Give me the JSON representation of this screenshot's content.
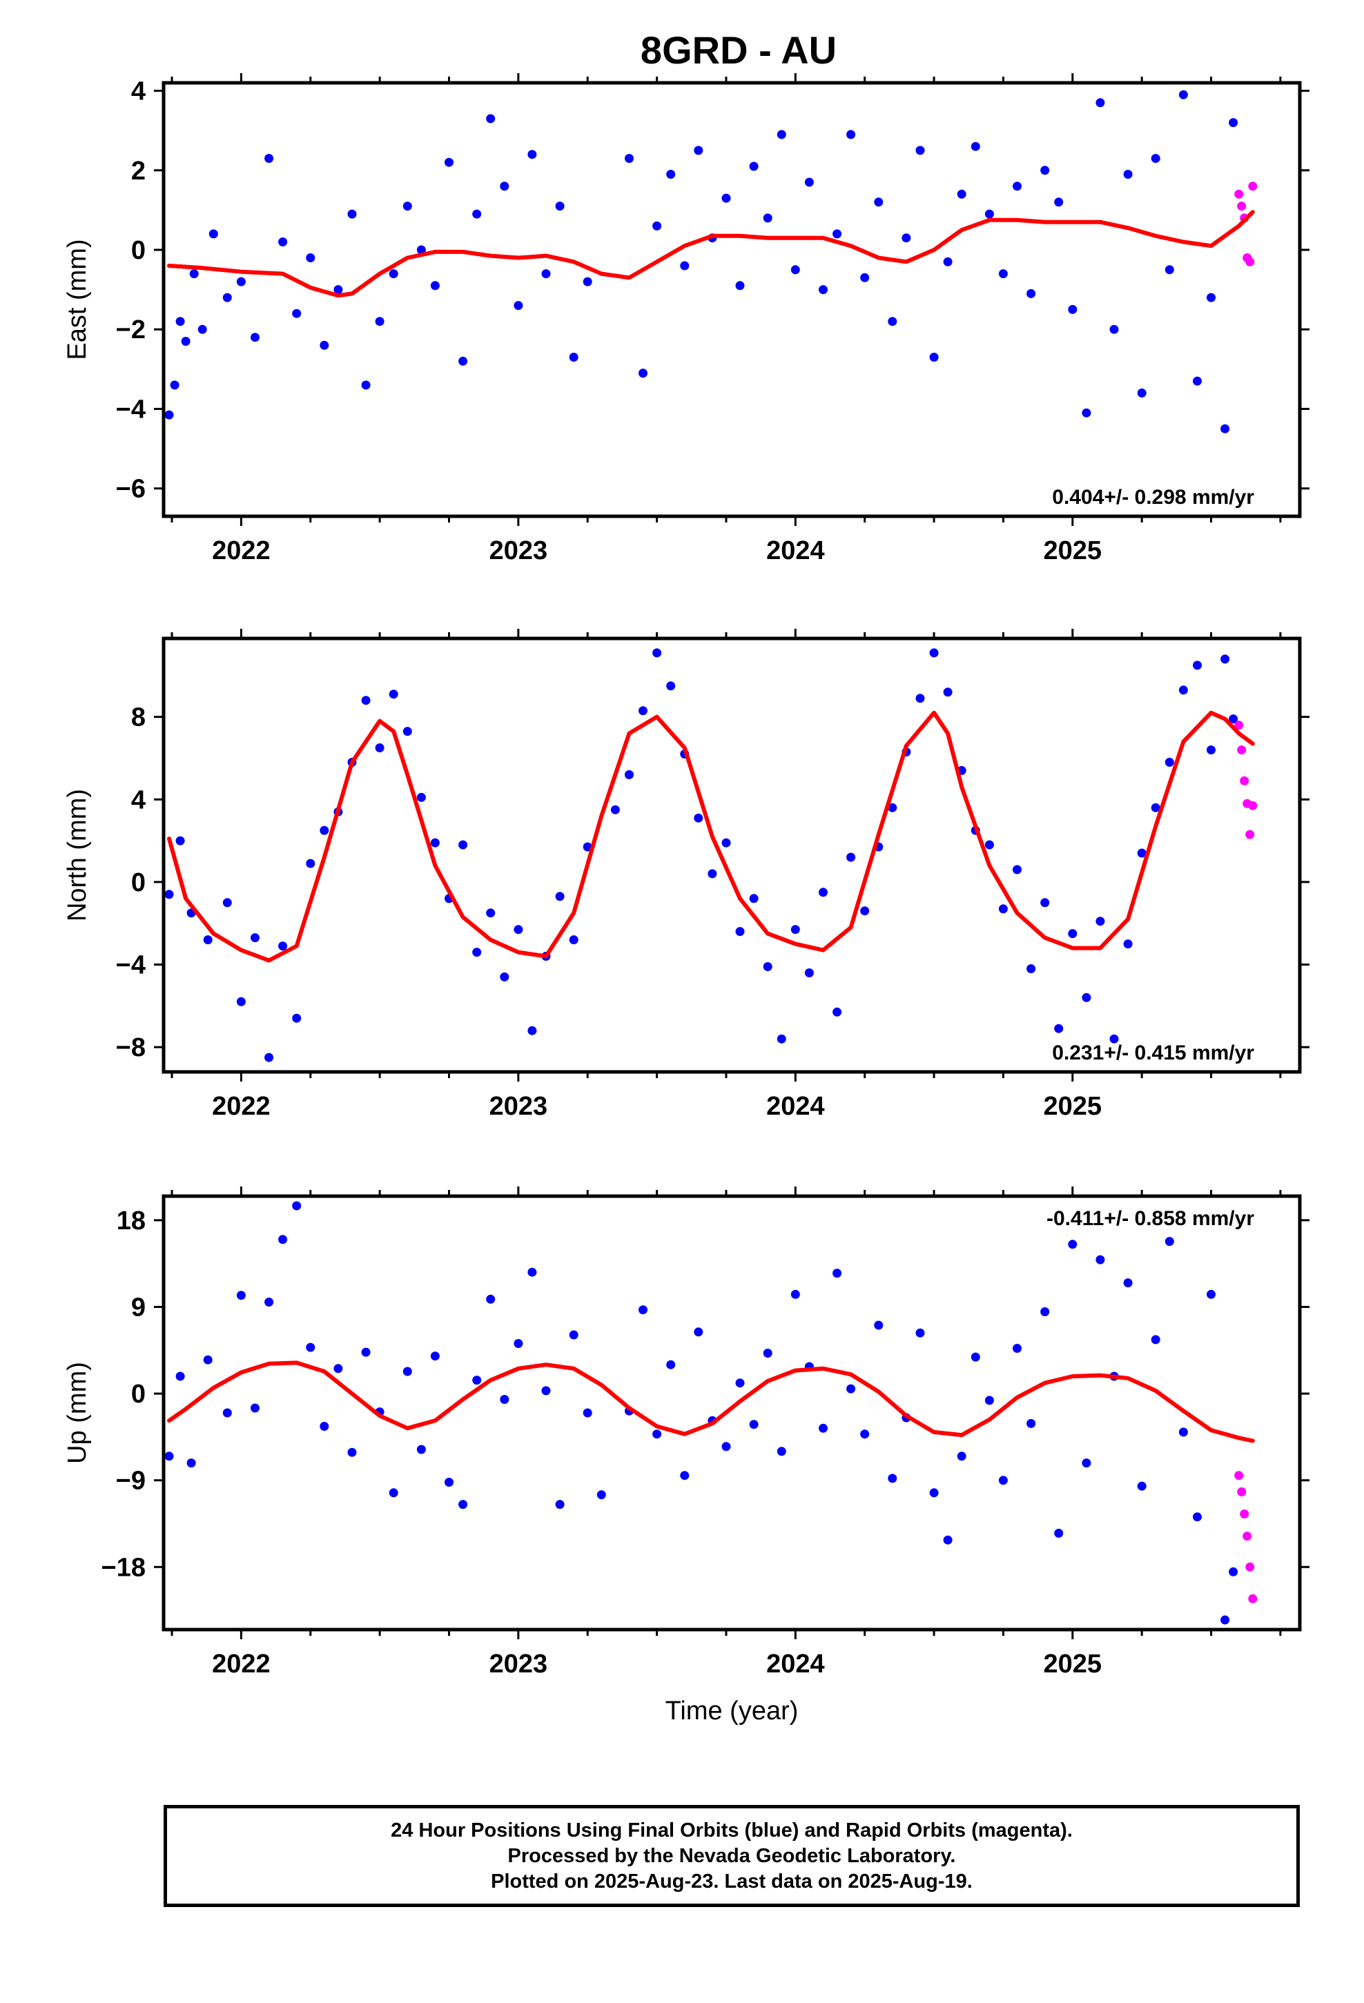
{
  "title": "8GRD - AU",
  "footer": {
    "line1": "24 Hour Positions Using Final Orbits (blue) and Rapid Orbits (magenta).",
    "line2": "Processed by the Nevada Geodetic Laboratory.",
    "line3": "Plotted on 2025-Aug-23. Last data on 2025-Aug-19."
  },
  "colors": {
    "final": "#0000ff",
    "rapid": "#ff00ff",
    "model": "#ff0000",
    "frame": "#000000"
  },
  "chart_data": [
    {
      "type": "scatter",
      "title": "",
      "xlabel": "",
      "ylabel": "East (mm)",
      "rate_label": "0.404+/- 0.298 mm/yr",
      "xlim": [
        2021.72,
        2025.82
      ],
      "ylim": [
        -6.7,
        4.2
      ],
      "xticks": [
        2022,
        2023,
        2024,
        2025
      ],
      "yticks": [
        -6,
        -4,
        -2,
        0,
        2,
        4
      ],
      "ytick_labels": [
        "−6",
        "−4",
        "−2",
        "0",
        "2",
        "4"
      ],
      "series": [
        {
          "color": "final",
          "x": [
            2021.74,
            2021.76,
            2021.78,
            2021.8,
            2021.83,
            2021.86,
            2021.9,
            2021.95,
            2022.0,
            2022.05,
            2022.1,
            2022.15,
            2022.2,
            2022.25,
            2022.3,
            2022.35,
            2022.4,
            2022.45,
            2022.5,
            2022.55,
            2022.6,
            2022.65,
            2022.7,
            2022.75,
            2022.8,
            2022.85,
            2022.9,
            2022.95,
            2023.0,
            2023.05,
            2023.1,
            2023.15,
            2023.2,
            2023.25,
            2023.4,
            2023.45,
            2023.5,
            2023.55,
            2023.6,
            2023.65,
            2023.7,
            2023.75,
            2023.8,
            2023.85,
            2023.9,
            2023.95,
            2024.0,
            2024.05,
            2024.1,
            2024.15,
            2024.2,
            2024.25,
            2024.3,
            2024.35,
            2024.4,
            2024.45,
            2024.5,
            2024.55,
            2024.6,
            2024.65,
            2024.7,
            2024.75,
            2024.8,
            2024.85,
            2024.9,
            2024.95,
            2025.0,
            2025.05,
            2025.1,
            2025.15,
            2025.2,
            2025.25,
            2025.3,
            2025.35,
            2025.4,
            2025.45,
            2025.5,
            2025.55,
            2025.58
          ],
          "y": [
            -4.15,
            -3.4,
            -1.8,
            -2.3,
            -0.6,
            -2.0,
            0.4,
            -1.2,
            -0.8,
            -2.2,
            2.3,
            0.2,
            -1.6,
            -0.2,
            -2.4,
            -1.0,
            0.9,
            -3.4,
            -1.8,
            -0.6,
            1.1,
            0.0,
            -0.9,
            2.2,
            -2.8,
            0.9,
            3.3,
            1.6,
            -1.4,
            2.4,
            -0.6,
            1.1,
            -2.7,
            -0.8,
            2.3,
            -3.1,
            0.6,
            1.9,
            -0.4,
            2.5,
            0.3,
            1.3,
            -0.9,
            2.1,
            0.8,
            2.9,
            -0.5,
            1.7,
            -1.0,
            0.4,
            2.9,
            -0.7,
            1.2,
            -1.8,
            0.3,
            2.5,
            -2.7,
            -0.3,
            1.4,
            2.6,
            0.9,
            -0.6,
            1.6,
            -1.1,
            2.0,
            1.2,
            -1.5,
            -4.1,
            3.7,
            -2.0,
            1.9,
            -3.6,
            2.3,
            -0.5,
            3.9,
            -3.3,
            -1.2,
            -4.5,
            3.2
          ]
        },
        {
          "color": "rapid",
          "x": [
            2025.6,
            2025.61,
            2025.62,
            2025.63,
            2025.64,
            2025.65
          ],
          "y": [
            1.4,
            1.1,
            0.8,
            -0.2,
            -0.3,
            1.6
          ]
        },
        {
          "color": "model",
          "x": [
            2021.74,
            2021.85,
            2022.0,
            2022.15,
            2022.25,
            2022.35,
            2022.4,
            2022.5,
            2022.6,
            2022.7,
            2022.8,
            2022.9,
            2023.0,
            2023.1,
            2023.2,
            2023.3,
            2023.4,
            2023.5,
            2023.6,
            2023.7,
            2023.8,
            2023.9,
            2024.0,
            2024.1,
            2024.2,
            2024.3,
            2024.4,
            2024.5,
            2024.6,
            2024.7,
            2024.8,
            2024.9,
            2025.0,
            2025.1,
            2025.2,
            2025.3,
            2025.4,
            2025.5,
            2025.6,
            2025.65
          ],
          "y": [
            -0.4,
            -0.45,
            -0.55,
            -0.6,
            -0.95,
            -1.15,
            -1.1,
            -0.6,
            -0.2,
            -0.05,
            -0.05,
            -0.15,
            -0.2,
            -0.15,
            -0.3,
            -0.6,
            -0.7,
            -0.3,
            0.1,
            0.35,
            0.35,
            0.3,
            0.3,
            0.3,
            0.1,
            -0.2,
            -0.3,
            0.0,
            0.5,
            0.75,
            0.75,
            0.7,
            0.7,
            0.7,
            0.55,
            0.35,
            0.2,
            0.1,
            0.6,
            0.95
          ]
        }
      ]
    },
    {
      "type": "scatter",
      "title": "",
      "xlabel": "",
      "ylabel": "North (mm)",
      "rate_label": "0.231+/- 0.415 mm/yr",
      "xlim": [
        2021.72,
        2025.82
      ],
      "ylim": [
        -9.2,
        11.8
      ],
      "xticks": [
        2022,
        2023,
        2024,
        2025
      ],
      "yticks": [
        -8,
        -4,
        0,
        4,
        8
      ],
      "ytick_labels": [
        "−8",
        "−4",
        "0",
        "4",
        "8"
      ],
      "series": [
        {
          "color": "final",
          "x": [
            2021.74,
            2021.78,
            2021.82,
            2021.88,
            2021.95,
            2022.0,
            2022.05,
            2022.1,
            2022.15,
            2022.2,
            2022.25,
            2022.3,
            2022.35,
            2022.4,
            2022.45,
            2022.5,
            2022.55,
            2022.6,
            2022.65,
            2022.7,
            2022.75,
            2022.8,
            2022.85,
            2022.9,
            2022.95,
            2023.0,
            2023.05,
            2023.1,
            2023.15,
            2023.2,
            2023.25,
            2023.35,
            2023.4,
            2023.45,
            2023.5,
            2023.55,
            2023.6,
            2023.65,
            2023.7,
            2023.75,
            2023.8,
            2023.85,
            2023.9,
            2023.95,
            2024.0,
            2024.05,
            2024.1,
            2024.15,
            2024.2,
            2024.25,
            2024.3,
            2024.35,
            2024.4,
            2024.45,
            2024.5,
            2024.55,
            2024.6,
            2024.65,
            2024.7,
            2024.75,
            2024.8,
            2024.85,
            2024.9,
            2024.95,
            2025.0,
            2025.05,
            2025.1,
            2025.15,
            2025.2,
            2025.25,
            2025.3,
            2025.35,
            2025.4,
            2025.45,
            2025.5,
            2025.55,
            2025.58
          ],
          "y": [
            -0.6,
            2.0,
            -1.5,
            -2.8,
            -1.0,
            -5.8,
            -2.7,
            -8.5,
            -3.1,
            -6.6,
            0.9,
            2.5,
            3.4,
            5.8,
            8.8,
            6.5,
            9.1,
            7.3,
            4.1,
            1.9,
            -0.8,
            1.8,
            -3.4,
            -1.5,
            -4.6,
            -2.3,
            -7.2,
            -3.6,
            -0.7,
            -2.8,
            1.7,
            3.5,
            5.2,
            8.3,
            11.1,
            9.5,
            6.2,
            3.1,
            0.4,
            1.9,
            -2.4,
            -0.8,
            -4.1,
            -7.6,
            -2.3,
            -4.4,
            -0.5,
            -6.3,
            1.2,
            -1.4,
            1.7,
            3.6,
            6.3,
            8.9,
            11.1,
            9.2,
            5.4,
            2.5,
            1.8,
            -1.3,
            0.6,
            -4.2,
            -1.0,
            -7.1,
            -2.5,
            -5.6,
            -1.9,
            -7.6,
            -3.0,
            1.4,
            3.6,
            5.8,
            9.3,
            10.5,
            6.4,
            10.8,
            7.9
          ]
        },
        {
          "color": "rapid",
          "x": [
            2025.6,
            2025.61,
            2025.62,
            2025.63,
            2025.64,
            2025.65
          ],
          "y": [
            7.6,
            6.4,
            4.9,
            3.8,
            2.3,
            3.7
          ]
        },
        {
          "color": "model",
          "x": [
            2021.74,
            2021.8,
            2021.9,
            2022.0,
            2022.1,
            2022.2,
            2022.3,
            2022.4,
            2022.5,
            2022.55,
            2022.6,
            2022.7,
            2022.8,
            2022.9,
            2023.0,
            2023.1,
            2023.2,
            2023.3,
            2023.4,
            2023.5,
            2023.6,
            2023.7,
            2023.8,
            2023.9,
            2024.0,
            2024.1,
            2024.2,
            2024.3,
            2024.4,
            2024.5,
            2024.55,
            2024.6,
            2024.7,
            2024.8,
            2024.9,
            2025.0,
            2025.1,
            2025.2,
            2025.3,
            2025.4,
            2025.5,
            2025.55,
            2025.6,
            2025.65
          ],
          "y": [
            2.1,
            -0.8,
            -2.5,
            -3.3,
            -3.8,
            -3.1,
            1.2,
            5.8,
            7.8,
            7.3,
            5.2,
            0.8,
            -1.7,
            -2.8,
            -3.4,
            -3.6,
            -1.5,
            3.2,
            7.2,
            8.0,
            6.5,
            2.2,
            -0.8,
            -2.5,
            -3.0,
            -3.3,
            -2.2,
            2.3,
            6.6,
            8.2,
            7.2,
            4.6,
            0.8,
            -1.5,
            -2.7,
            -3.2,
            -3.2,
            -1.8,
            2.7,
            6.8,
            8.2,
            7.9,
            7.2,
            6.7
          ]
        }
      ]
    },
    {
      "type": "scatter",
      "title": "",
      "xlabel": "Time (year)",
      "ylabel": "Up (mm)",
      "rate_label": "-0.411+/- 0.858 mm/yr",
      "xlim": [
        2021.72,
        2025.82
      ],
      "ylim": [
        -24.5,
        20.5
      ],
      "xticks": [
        2022,
        2023,
        2024,
        2025
      ],
      "yticks": [
        -18,
        -9,
        0,
        9,
        18
      ],
      "ytick_labels": [
        "−18",
        "−9",
        "0",
        "9",
        "18"
      ],
      "series": [
        {
          "color": "final",
          "x": [
            2021.74,
            2021.78,
            2021.82,
            2021.88,
            2021.95,
            2022.0,
            2022.05,
            2022.1,
            2022.15,
            2022.2,
            2022.25,
            2022.3,
            2022.35,
            2022.4,
            2022.45,
            2022.5,
            2022.55,
            2022.6,
            2022.65,
            2022.7,
            2022.75,
            2022.8,
            2022.85,
            2022.9,
            2022.95,
            2023.0,
            2023.05,
            2023.1,
            2023.15,
            2023.2,
            2023.25,
            2023.3,
            2023.4,
            2023.45,
            2023.5,
            2023.55,
            2023.6,
            2023.65,
            2023.7,
            2023.75,
            2023.8,
            2023.85,
            2023.9,
            2023.95,
            2024.0,
            2024.05,
            2024.1,
            2024.15,
            2024.2,
            2024.25,
            2024.3,
            2024.35,
            2024.4,
            2024.45,
            2024.5,
            2024.55,
            2024.6,
            2024.65,
            2024.7,
            2024.75,
            2024.8,
            2024.85,
            2024.9,
            2024.95,
            2025.0,
            2025.05,
            2025.1,
            2025.15,
            2025.2,
            2025.25,
            2025.3,
            2025.35,
            2025.4,
            2025.45,
            2025.5,
            2025.55,
            2025.58
          ],
          "y": [
            -6.5,
            1.8,
            -7.2,
            3.5,
            -2.0,
            10.2,
            -1.5,
            9.5,
            16.0,
            19.5,
            4.8,
            -3.4,
            2.6,
            -6.1,
            4.3,
            -1.9,
            -10.3,
            2.3,
            -5.8,
            3.9,
            -9.2,
            -11.5,
            1.4,
            9.8,
            -0.6,
            5.2,
            12.6,
            0.3,
            -11.5,
            6.1,
            -2.0,
            -10.5,
            -1.8,
            8.7,
            -4.2,
            3.0,
            -8.5,
            6.4,
            -2.8,
            -5.5,
            1.1,
            -3.2,
            4.2,
            -6.0,
            10.3,
            2.8,
            -3.6,
            12.5,
            0.5,
            -4.2,
            7.1,
            -8.8,
            -2.5,
            6.3,
            -10.3,
            -15.2,
            -6.5,
            3.8,
            -0.7,
            -9.0,
            4.7,
            -3.1,
            8.5,
            -14.5,
            15.5,
            -7.2,
            13.9,
            1.8,
            11.5,
            -9.6,
            5.6,
            15.8,
            -4.0,
            -12.8,
            10.3,
            -23.5,
            -18.5
          ]
        },
        {
          "color": "rapid",
          "x": [
            2025.6,
            2025.61,
            2025.62,
            2025.63,
            2025.64,
            2025.65
          ],
          "y": [
            -8.5,
            -10.2,
            -12.5,
            -14.8,
            -18.0,
            -21.3
          ]
        },
        {
          "color": "model",
          "x": [
            2021.74,
            2021.8,
            2021.9,
            2022.0,
            2022.1,
            2022.2,
            2022.3,
            2022.4,
            2022.5,
            2022.6,
            2022.7,
            2022.8,
            2022.9,
            2023.0,
            2023.1,
            2023.2,
            2023.3,
            2023.4,
            2023.5,
            2023.6,
            2023.7,
            2023.8,
            2023.9,
            2024.0,
            2024.1,
            2024.2,
            2024.3,
            2024.4,
            2024.5,
            2024.6,
            2024.7,
            2024.8,
            2024.9,
            2025.0,
            2025.1,
            2025.2,
            2025.3,
            2025.4,
            2025.5,
            2025.6,
            2025.65
          ],
          "y": [
            -2.8,
            -1.6,
            0.6,
            2.2,
            3.1,
            3.2,
            2.3,
            0.0,
            -2.3,
            -3.6,
            -2.8,
            -0.6,
            1.4,
            2.6,
            3.0,
            2.6,
            0.9,
            -1.5,
            -3.4,
            -4.2,
            -3.1,
            -0.8,
            1.3,
            2.4,
            2.6,
            2.0,
            0.2,
            -2.3,
            -4.0,
            -4.3,
            -2.7,
            -0.4,
            1.1,
            1.8,
            1.9,
            1.6,
            0.3,
            -1.8,
            -3.8,
            -4.6,
            -4.9
          ]
        }
      ]
    }
  ]
}
